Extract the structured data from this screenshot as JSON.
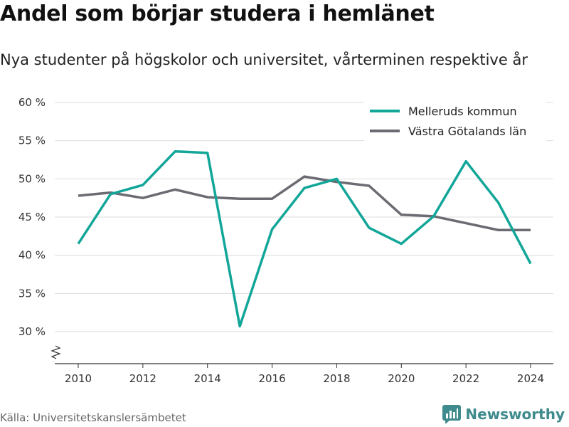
{
  "title": "Andel som börjar studera i hemlänet",
  "subtitle": "Nya studenter på högskolor och universitet, vårterminen respektive år",
  "source": "Källa: Universitetskanslersämbetet",
  "brand": "Newsworthy",
  "colors": {
    "series_1": "#12a699",
    "series_2": "#6b6b73",
    "grid": "#dddddd",
    "brand": "#3f8a8c"
  },
  "chart_data": {
    "type": "line",
    "title": "Andel som börjar studera i hemlänet",
    "xlabel": "",
    "ylabel": "",
    "x": [
      2010,
      2011,
      2012,
      2013,
      2014,
      2015,
      2016,
      2017,
      2018,
      2019,
      2020,
      2021,
      2022,
      2023,
      2024
    ],
    "series": [
      {
        "name": "Melleruds kommun",
        "color": "#12a699",
        "values": [
          41.5,
          48.0,
          49.2,
          53.6,
          53.4,
          30.7,
          43.4,
          48.8,
          50.0,
          43.6,
          41.5,
          45.1,
          52.3,
          46.9,
          38.9
        ]
      },
      {
        "name": "Västra Götalands län",
        "color": "#6b6b73",
        "values": [
          47.8,
          48.2,
          47.5,
          48.6,
          47.6,
          47.4,
          47.4,
          50.3,
          49.6,
          49.1,
          45.3,
          45.1,
          44.2,
          43.3,
          43.3
        ]
      }
    ],
    "ylim": [
      30,
      60
    ],
    "yticks": [
      30,
      35,
      40,
      45,
      50,
      55,
      60
    ],
    "ytick_labels": [
      "30 %",
      "35 %",
      "40 %",
      "45 %",
      "50 %",
      "55 %",
      "60 %"
    ],
    "xticks": [
      2010,
      2012,
      2014,
      2016,
      2018,
      2020,
      2022,
      2024
    ],
    "xtick_labels": [
      "2010",
      "2012",
      "2014",
      "2016",
      "2018",
      "2020",
      "2022",
      "2024"
    ],
    "y_axis_break": true,
    "grid": true,
    "legend_position": "top-right"
  }
}
